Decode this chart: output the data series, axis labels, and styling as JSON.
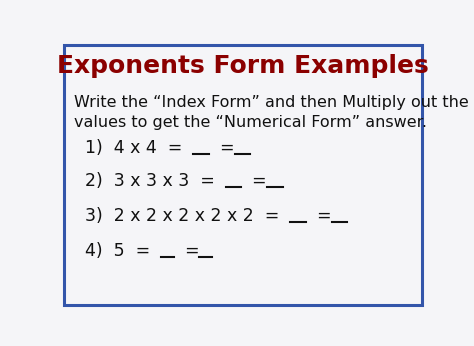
{
  "title": "Exponents Form Examples",
  "title_color": "#8B0000",
  "title_fontsize": 18,
  "bg_color": "#f5f5f8",
  "border_color": "#3355aa",
  "instruction_line1": "Write the “Index Form” and then Multiply out the",
  "instruction_line2": "values to get the “Numerical Form” answer.",
  "instruction_fontsize": 11.5,
  "instruction_color": "#111111",
  "item_fontsize": 12.5,
  "item_color": "#111111",
  "items": [
    {
      "prefix": "1)  4 x 4  =  ",
      "blank1_chars": 5,
      "between": "  =",
      "blank2_chars": 5
    },
    {
      "prefix": "2)  3 x 3 x 3  =  ",
      "blank1_chars": 5,
      "between": "  =",
      "blank2_chars": 5
    },
    {
      "prefix": "3)  2 x 2 x 2 x 2 x 2  =  ",
      "blank1_chars": 5,
      "between": "  =",
      "blank2_chars": 5
    },
    {
      "prefix": "4)  5  =  ",
      "blank1_chars": 4,
      "between": "  =",
      "blank2_chars": 4
    }
  ]
}
